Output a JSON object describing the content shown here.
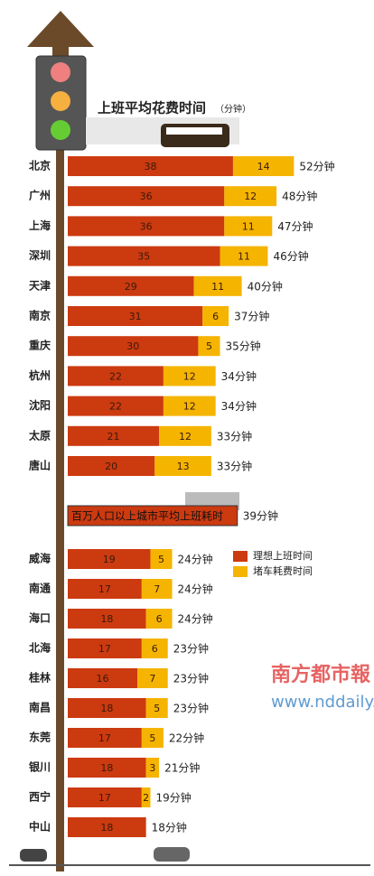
{
  "chart_data": {
    "type": "bar",
    "orientation": "horizontal",
    "stacked": true,
    "title": "上班平均花费时间",
    "subtitle": "（分钟）",
    "categories": [
      "北京",
      "广州",
      "上海",
      "深圳",
      "天津",
      "南京",
      "重庆",
      "杭州",
      "沈阳",
      "太原",
      "唐山",
      "威海",
      "南通",
      "海口",
      "北海",
      "桂林",
      "南昌",
      "东莞",
      "银川",
      "西宁",
      "中山"
    ],
    "series": [
      {
        "name": "理想上班时间",
        "color": "#cc3a10",
        "values": [
          38,
          36,
          36,
          35,
          29,
          31,
          30,
          22,
          22,
          21,
          20,
          19,
          17,
          18,
          17,
          16,
          18,
          17,
          18,
          17,
          18
        ]
      },
      {
        "name": "堵车耗费时间",
        "color": "#f5b400",
        "values": [
          14,
          12,
          11,
          11,
          11,
          6,
          5,
          12,
          12,
          12,
          13,
          5,
          7,
          6,
          6,
          7,
          5,
          5,
          3,
          2,
          null
        ]
      }
    ],
    "totals": [
      52,
      48,
      47,
      46,
      40,
      37,
      35,
      34,
      34,
      33,
      33,
      24,
      24,
      24,
      23,
      23,
      23,
      22,
      21,
      19,
      18
    ],
    "total_labels": [
      "52分钟",
      "48分钟",
      "47分钟",
      "46分钟",
      "40分钟",
      "37分钟",
      "35分钟",
      "34分钟",
      "34分钟",
      "33分钟",
      "33分钟",
      "24分钟",
      "24分钟",
      "24分钟",
      "23分钟",
      "23分钟",
      "23分钟",
      "22分钟",
      "21分钟",
      "19分钟",
      "18分钟"
    ],
    "average": {
      "label": "百万人口以上城市平均上班耗时",
      "value": 39,
      "value_label": "39分钟",
      "color": "#cc3a10"
    },
    "xlim": [
      0,
      70
    ],
    "watermark": [
      "南方都市報",
      "www.nddaily.com"
    ]
  }
}
